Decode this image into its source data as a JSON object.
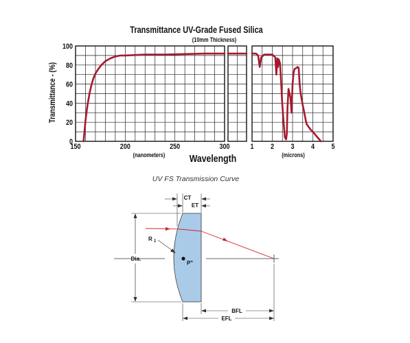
{
  "chart_data": {
    "type": "line",
    "title": "Transmittance UV-Grade Fused Silica",
    "subtitle": "(10mm Thickness)",
    "ylabel": "Transmittance - (%)",
    "xlabel": "Wavelength",
    "ylim": [
      0,
      100
    ],
    "y_ticks": [
      "0",
      "20",
      "40",
      "60",
      "80",
      "100"
    ],
    "grid": true,
    "panels": [
      {
        "unit_label": "(nanometers)",
        "xlim": [
          150,
          300
        ],
        "x_ticks": [
          "150",
          "200",
          "250",
          "300"
        ],
        "series": [
          {
            "color": "#a6192e",
            "x": [
              158,
              159,
              160,
              162,
              164,
              166,
              168,
              170,
              173,
              176,
              180,
              185,
              190,
              195,
              200,
              210,
              220,
              240,
              260,
              280,
              300
            ],
            "y": [
              0,
              10,
              22,
              38,
              50,
              59,
              66,
              71,
              76,
              80,
              84,
              87,
              89,
              90,
              90,
              90.5,
              91,
              91,
              91.5,
              92,
              92
            ]
          }
        ]
      },
      {
        "xlim": [
          300,
          1000
        ],
        "series": [
          {
            "color": "#a6192e",
            "x": [
              300,
              1000
            ],
            "y": [
              92,
              92
            ]
          }
        ]
      },
      {
        "unit_label": "(microns)",
        "xlim": [
          1,
          5
        ],
        "x_ticks": [
          "1",
          "2",
          "3",
          "4",
          "5"
        ],
        "series": [
          {
            "color": "#a6192e",
            "x": [
              1.0,
              1.2,
              1.3,
              1.38,
              1.45,
              1.6,
              2.0,
              2.15,
              2.2,
              2.25,
              2.28,
              2.32,
              2.38,
              2.42,
              2.48,
              2.55,
              2.62,
              2.68,
              2.72,
              2.75,
              2.8,
              2.9,
              2.95,
              3.0,
              3.05,
              3.1,
              3.2,
              3.25,
              3.3,
              3.35,
              3.4,
              3.5,
              3.6,
              3.65,
              3.7,
              3.8,
              3.9,
              4.0,
              4.2,
              4.4
            ],
            "y": [
              92,
              92,
              90,
              78,
              88,
              91,
              91,
              88,
              70,
              87,
              78,
              86,
              82,
              68,
              43,
              22,
              4,
              2,
              8,
              35,
              55,
              45,
              30,
              60,
              72,
              76,
              77,
              78,
              77,
              60,
              50,
              38,
              28,
              22,
              18,
              15,
              12,
              10,
              5,
              0
            ]
          }
        ]
      }
    ]
  },
  "caption": "UV FS Transmission Curve",
  "diagram": {
    "labels": {
      "ct": "CT",
      "et": "ET",
      "r1": "R",
      "r1_sub": "1",
      "dia": "Dia.",
      "p": "P\"",
      "bfl": "BFL",
      "efl": "EFL"
    },
    "colors": {
      "lens_fill": "#a9cbe8",
      "ray": "#d2232a"
    }
  }
}
